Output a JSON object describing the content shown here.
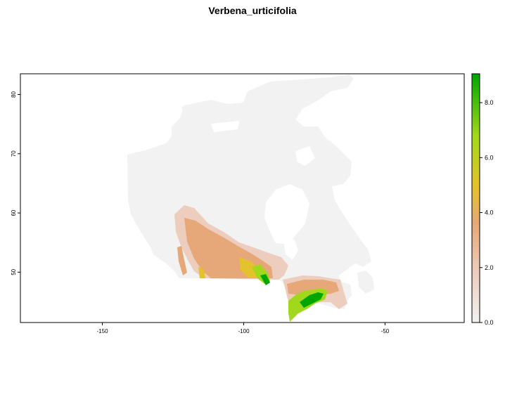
{
  "title": "Verbena_urticifolia",
  "map": {
    "x_range": [
      -179,
      -22
    ],
    "y_range": [
      41.5,
      83.5
    ],
    "x_ticks": [
      {
        "value": -150,
        "label": "-150"
      },
      {
        "value": -100,
        "label": "-100"
      },
      {
        "value": -50,
        "label": "-50"
      }
    ],
    "y_ticks": [
      {
        "value": 50,
        "label": "50"
      },
      {
        "value": 60,
        "label": "60"
      },
      {
        "value": 70,
        "label": "70"
      },
      {
        "value": 80,
        "label": "80"
      }
    ]
  },
  "legend": {
    "min": 0,
    "max": 9.05,
    "ticks": [
      {
        "value": 0,
        "label": "0.0"
      },
      {
        "value": 2,
        "label": "2.0"
      },
      {
        "value": 4,
        "label": "4.0"
      },
      {
        "value": 6,
        "label": "6.0"
      },
      {
        "value": 8,
        "label": "8.0"
      }
    ],
    "colors": [
      "#f2f2f2",
      "#edcdbd",
      "#e6a878",
      "#e3c22b",
      "#a2d81c",
      "#00a600"
    ]
  }
}
